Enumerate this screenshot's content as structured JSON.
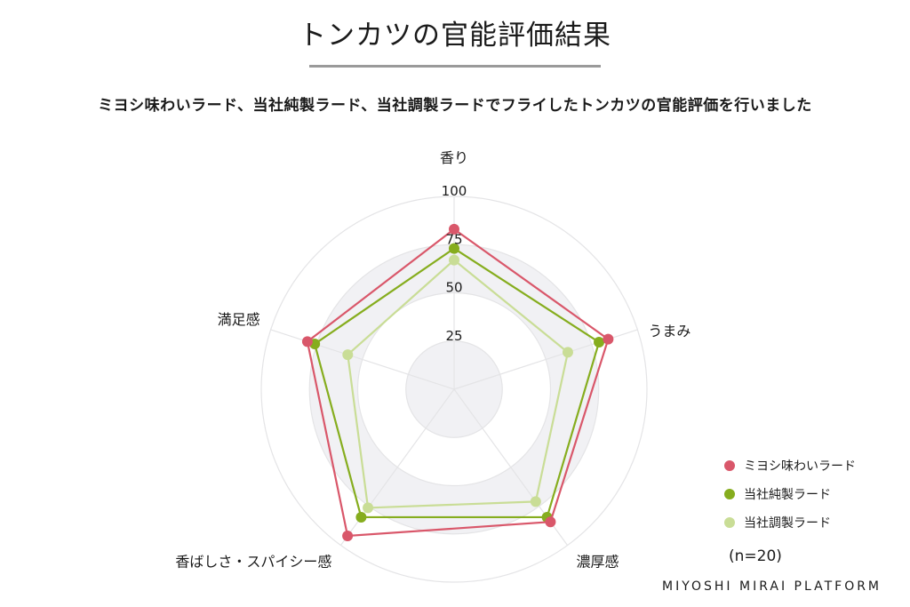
{
  "title": "トンカツの官能評価結果",
  "subtitle": "ミヨシ味わいラード、当社純製ラード、当社調製ラードでフライしたトンカツの官能評価を行いました",
  "note": "(n=20)",
  "brand": "MIYOSHI MIRAI PLATFORM",
  "colors": {
    "series1": "#d9576a",
    "series2": "#86ad1e",
    "series3": "#c9dd96",
    "grid": "#e4e4e6",
    "band": "#f1f1f4"
  },
  "chart_data": {
    "type": "radar",
    "axes": [
      "香り",
      "うまみ",
      "濃厚感",
      "香ばしさ・スパイシー感",
      "満足感"
    ],
    "rlim": [
      0,
      100
    ],
    "ticks": [
      "25",
      "50",
      "75",
      "100"
    ],
    "grid": true,
    "legend_position": "right",
    "series": [
      {
        "name": "ミヨシ味わいラード",
        "values": [
          83,
          84,
          85,
          94,
          80
        ]
      },
      {
        "name": "当社純製ラード",
        "values": [
          73,
          79,
          82,
          82,
          76
        ]
      },
      {
        "name": "当社調製ラード",
        "values": [
          67,
          62,
          72,
          76,
          58
        ]
      }
    ]
  }
}
